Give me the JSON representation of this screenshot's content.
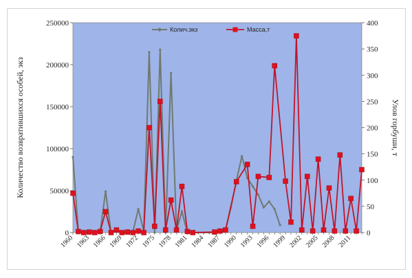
{
  "chart_data": {
    "type": "line",
    "title": "",
    "xlabel": "",
    "ylabel_left": "Количество возвратившихся особей, экз",
    "ylabel_right": "Улов горбуши, т",
    "ylim_left": [
      0,
      250000
    ],
    "ylim_right": [
      0,
      400
    ],
    "yticks_left": [
      "0",
      "50000",
      "100000",
      "150000",
      "200000",
      "250000"
    ],
    "yticks_right": [
      "0",
      "50",
      "100",
      "150",
      "200",
      "250",
      "300",
      "350",
      "400"
    ],
    "x_tick_labels": [
      "1960",
      "1963",
      "1966",
      "1969",
      "1972",
      "1975",
      "1978",
      "1981",
      "1984",
      "1987",
      "1990",
      "1993",
      "1996",
      "1999",
      "2002",
      "2005",
      "2008",
      "2011"
    ],
    "grid": false,
    "legend_position": "top-center",
    "colors": {
      "plot_bg": "#9fb4e8",
      "count_line": "#6f7a6f",
      "mass_line": "#c0152a",
      "mass_marker": "#e0101e"
    },
    "series": [
      {
        "name": "Колич.экз",
        "axis": "left",
        "x": [
          1960,
          1961,
          1962,
          1963,
          1964,
          1965,
          1966,
          1967,
          1968,
          1969,
          1970,
          1971,
          1972,
          1973,
          1974,
          1975,
          1976,
          1977,
          1978,
          1979,
          1980,
          1981,
          1982,
          1983,
          1984,
          1985,
          1986,
          1987,
          1988,
          1989,
          1990,
          1991,
          1992,
          1993,
          1994,
          1995,
          1996,
          1997,
          1998
        ],
        "values": [
          90000,
          1000,
          0,
          500,
          0,
          1000,
          49000,
          0,
          2000,
          0,
          0,
          1000,
          28000,
          2000,
          215000,
          0,
          218000,
          0,
          190000,
          3000,
          25000,
          0,
          0,
          0,
          0,
          0,
          0,
          1000,
          3000,
          30000,
          62000,
          91000,
          65000,
          55000,
          45000,
          30000,
          37000,
          28000,
          9000
        ]
      },
      {
        "name": "Масса,т",
        "axis": "right",
        "x": [
          1960,
          1961,
          1962,
          1963,
          1964,
          1965,
          1966,
          1967,
          1968,
          1969,
          1970,
          1971,
          1972,
          1973,
          1974,
          1975,
          1976,
          1977,
          1978,
          1979,
          1980,
          1981,
          1982,
          1986,
          1987,
          1988,
          1990,
          1992,
          1993,
          1994,
          1996,
          1997,
          1999,
          2000,
          2001,
          2002,
          2003,
          2004,
          2005,
          2006,
          2007,
          2008,
          2009,
          2010,
          2011,
          2012,
          2013
        ],
        "values": [
          75,
          2,
          0,
          1,
          0,
          2,
          40,
          0,
          5,
          0,
          1,
          0,
          3,
          0,
          200,
          12,
          250,
          5,
          62,
          5,
          88,
          2,
          0,
          1,
          3,
          5,
          97,
          130,
          12,
          107,
          105,
          318,
          98,
          20,
          375,
          5,
          107,
          3,
          140,
          5,
          85,
          3,
          148,
          3,
          65,
          3,
          120
        ]
      }
    ]
  }
}
